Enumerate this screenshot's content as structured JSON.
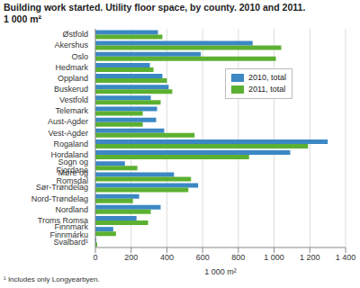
{
  "chart_data": {
    "type": "bar",
    "orientation": "horizontal",
    "title": "Building work started. Utility floor space, by county. 2010 and 2011.\n1 000 m²",
    "x_label": "1 000 m²",
    "footnote": "¹ Includes only Longyearbyen.",
    "categories": [
      "Østfold",
      "Akershus",
      "Oslo",
      "Hedmark",
      "Oppland",
      "Buskerud",
      "Vestfold",
      "Telemark",
      "Aust-Agder",
      "Vest-Agder",
      "Rogaland",
      "Hordaland",
      "Sogn og Fjordane",
      "Møre og Romsdal",
      "Sør-Trøndelag",
      "Nord-Trøndelag",
      "Nordland",
      "Troms Romsa",
      "Finnmark Finnmárku",
      "Svalbard¹"
    ],
    "series": [
      {
        "name": "2010, total",
        "color": "#3b88c4",
        "values": [
          350,
          880,
          590,
          305,
          375,
          410,
          310,
          345,
          340,
          385,
          1300,
          1090,
          165,
          440,
          575,
          245,
          365,
          230,
          100,
          5
        ]
      },
      {
        "name": "2011, total",
        "color": "#5cb031",
        "values": [
          375,
          1040,
          1010,
          325,
          400,
          430,
          365,
          265,
          265,
          555,
          1190,
          860,
          235,
          535,
          520,
          210,
          310,
          295,
          115,
          10
        ]
      }
    ],
    "xlim": [
      0,
      1400
    ],
    "xticks": [
      0,
      200,
      400,
      600,
      800,
      {
        "value": 1000,
        "label": "1 000"
      },
      {
        "value": 1200,
        "label": "1 200"
      },
      {
        "value": 1400,
        "label": "1 400"
      }
    ],
    "grid": true,
    "legend": "right"
  }
}
